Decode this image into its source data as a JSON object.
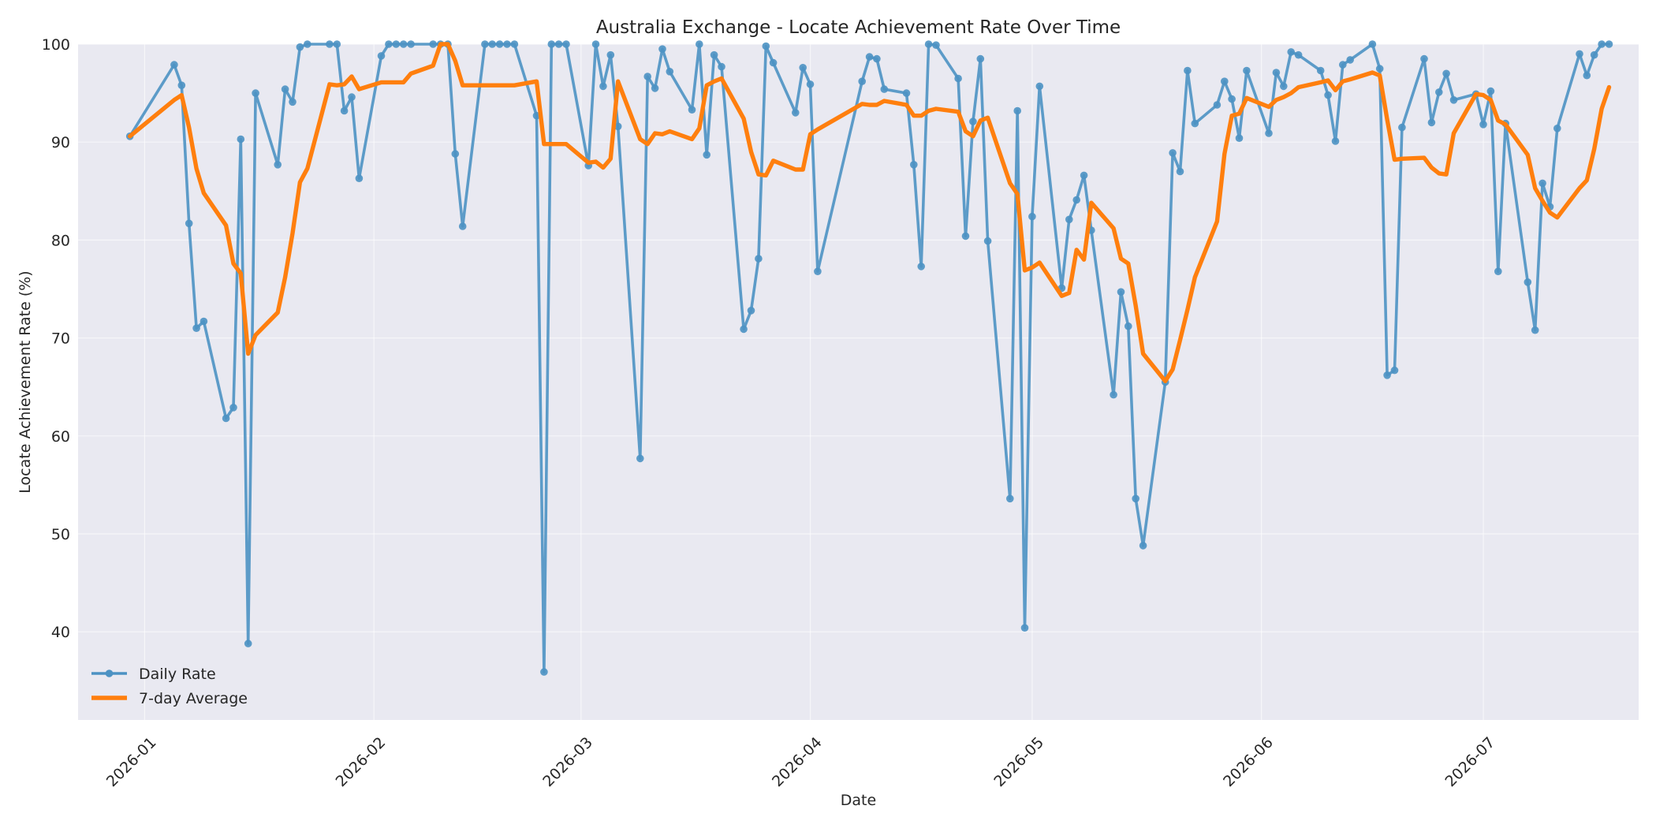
{
  "chart_data": {
    "type": "line",
    "title": "Australia Exchange - Locate Achievement Rate Over Time",
    "xlabel": "Date",
    "ylabel": "Locate Achievement Rate (%)",
    "xlim": [
      "2025-12-23",
      "2026-07-22"
    ],
    "ylim": [
      31,
      100
    ],
    "y_ticks": [
      40,
      50,
      60,
      70,
      80,
      90,
      100
    ],
    "x_ticks": [
      "2026-01",
      "2026-02",
      "2026-03",
      "2026-04",
      "2026-05",
      "2026-06",
      "2026-07"
    ],
    "grid": true,
    "legend_position": "lower-left",
    "series": [
      {
        "name": "Daily Rate",
        "color": "#4c92c3",
        "marker": "circle",
        "points": [
          [
            "2025-12-30",
            90.6
          ],
          [
            "2026-01-05",
            97.9
          ],
          [
            "2026-01-06",
            95.8
          ],
          [
            "2026-01-07",
            81.7
          ],
          [
            "2026-01-08",
            71.0
          ],
          [
            "2026-01-09",
            71.7
          ],
          [
            "2026-01-12",
            61.8
          ],
          [
            "2026-01-13",
            62.9
          ],
          [
            "2026-01-14",
            90.3
          ],
          [
            "2026-01-15",
            38.8
          ],
          [
            "2026-01-16",
            95.0
          ],
          [
            "2026-01-19",
            87.7
          ],
          [
            "2026-01-20",
            95.4
          ],
          [
            "2026-01-21",
            94.1
          ],
          [
            "2026-01-22",
            99.7
          ],
          [
            "2026-01-23",
            100.0
          ],
          [
            "2026-01-26",
            100.0
          ],
          [
            "2026-01-27",
            100.0
          ],
          [
            "2026-01-28",
            93.2
          ],
          [
            "2026-01-29",
            94.6
          ],
          [
            "2026-01-30",
            86.3
          ],
          [
            "2026-02-02",
            98.8
          ],
          [
            "2026-02-03",
            100.0
          ],
          [
            "2026-02-04",
            100.0
          ],
          [
            "2026-02-05",
            100.0
          ],
          [
            "2026-02-06",
            100.0
          ],
          [
            "2026-02-09",
            100.0
          ],
          [
            "2026-02-10",
            100.0
          ],
          [
            "2026-02-11",
            100.0
          ],
          [
            "2026-02-12",
            88.8
          ],
          [
            "2026-02-13",
            81.4
          ],
          [
            "2026-02-16",
            100.0
          ],
          [
            "2026-02-17",
            100.0
          ],
          [
            "2026-02-18",
            100.0
          ],
          [
            "2026-02-19",
            100.0
          ],
          [
            "2026-02-20",
            100.0
          ],
          [
            "2026-02-23",
            92.7
          ],
          [
            "2026-02-24",
            35.9
          ],
          [
            "2026-02-25",
            100.0
          ],
          [
            "2026-02-26",
            100.0
          ],
          [
            "2026-02-27",
            100.0
          ],
          [
            "2026-03-02",
            87.6
          ],
          [
            "2026-03-03",
            100.0
          ],
          [
            "2026-03-04",
            95.7
          ],
          [
            "2026-03-05",
            98.9
          ],
          [
            "2026-03-06",
            91.6
          ],
          [
            "2026-03-09",
            57.7
          ],
          [
            "2026-03-10",
            96.7
          ],
          [
            "2026-03-11",
            95.5
          ],
          [
            "2026-03-12",
            99.5
          ],
          [
            "2026-03-13",
            97.2
          ],
          [
            "2026-03-16",
            93.3
          ],
          [
            "2026-03-17",
            100.0
          ],
          [
            "2026-03-18",
            88.7
          ],
          [
            "2026-03-19",
            98.9
          ],
          [
            "2026-03-20",
            97.7
          ],
          [
            "2026-03-23",
            70.9
          ],
          [
            "2026-03-24",
            72.8
          ],
          [
            "2026-03-25",
            78.1
          ],
          [
            "2026-03-26",
            99.8
          ],
          [
            "2026-03-27",
            98.1
          ],
          [
            "2026-03-30",
            93.0
          ],
          [
            "2026-03-31",
            97.6
          ],
          [
            "2026-04-01",
            95.9
          ],
          [
            "2026-04-02",
            76.8
          ],
          [
            "2026-04-08",
            96.2
          ],
          [
            "2026-04-09",
            98.7
          ],
          [
            "2026-04-10",
            98.5
          ],
          [
            "2026-04-11",
            95.4
          ],
          [
            "2026-04-14",
            95.0
          ],
          [
            "2026-04-15",
            87.7
          ],
          [
            "2026-04-16",
            77.3
          ],
          [
            "2026-04-17",
            100.0
          ],
          [
            "2026-04-18",
            99.9
          ],
          [
            "2026-04-21",
            96.5
          ],
          [
            "2026-04-22",
            80.4
          ],
          [
            "2026-04-23",
            92.1
          ],
          [
            "2026-04-24",
            98.5
          ],
          [
            "2026-04-25",
            79.9
          ],
          [
            "2026-04-28",
            53.6
          ],
          [
            "2026-04-29",
            93.2
          ],
          [
            "2026-04-30",
            40.4
          ],
          [
            "2026-05-01",
            82.4
          ],
          [
            "2026-05-02",
            95.7
          ],
          [
            "2026-05-05",
            75.1
          ],
          [
            "2026-05-06",
            82.1
          ],
          [
            "2026-05-07",
            84.1
          ],
          [
            "2026-05-08",
            86.6
          ],
          [
            "2026-05-09",
            81.0
          ],
          [
            "2026-05-12",
            64.2
          ],
          [
            "2026-05-13",
            74.7
          ],
          [
            "2026-05-14",
            71.2
          ],
          [
            "2026-05-15",
            53.6
          ],
          [
            "2026-05-16",
            48.8
          ],
          [
            "2026-05-19",
            65.5
          ],
          [
            "2026-05-20",
            88.9
          ],
          [
            "2026-05-21",
            87.0
          ],
          [
            "2026-05-22",
            97.3
          ],
          [
            "2026-05-23",
            91.9
          ],
          [
            "2026-05-26",
            93.8
          ],
          [
            "2026-05-27",
            96.2
          ],
          [
            "2026-05-28",
            94.4
          ],
          [
            "2026-05-29",
            90.4
          ],
          [
            "2026-05-30",
            97.3
          ],
          [
            "2026-06-02",
            90.9
          ],
          [
            "2026-06-03",
            97.1
          ],
          [
            "2026-06-04",
            95.7
          ],
          [
            "2026-06-05",
            99.2
          ],
          [
            "2026-06-06",
            98.9
          ],
          [
            "2026-06-09",
            97.3
          ],
          [
            "2026-06-10",
            94.8
          ],
          [
            "2026-06-11",
            90.1
          ],
          [
            "2026-06-12",
            97.9
          ],
          [
            "2026-06-13",
            98.4
          ],
          [
            "2026-06-16",
            100.0
          ],
          [
            "2026-06-17",
            97.5
          ],
          [
            "2026-06-18",
            66.2
          ],
          [
            "2026-06-19",
            66.7
          ],
          [
            "2026-06-20",
            91.5
          ],
          [
            "2026-06-23",
            98.5
          ],
          [
            "2026-06-24",
            92.0
          ],
          [
            "2026-06-25",
            95.1
          ],
          [
            "2026-06-26",
            97.0
          ],
          [
            "2026-06-27",
            94.3
          ],
          [
            "2026-06-30",
            94.9
          ],
          [
            "2026-07-01",
            91.8
          ],
          [
            "2026-07-02",
            95.2
          ],
          [
            "2026-07-03",
            76.8
          ],
          [
            "2026-07-04",
            91.9
          ],
          [
            "2026-07-07",
            75.7
          ],
          [
            "2026-07-08",
            70.8
          ],
          [
            "2026-07-09",
            85.8
          ],
          [
            "2026-07-10",
            83.4
          ],
          [
            "2026-07-11",
            91.4
          ],
          [
            "2026-07-14",
            99.0
          ],
          [
            "2026-07-15",
            96.8
          ],
          [
            "2026-07-16",
            98.9
          ],
          [
            "2026-07-17",
            100.0
          ],
          [
            "2026-07-18",
            100.0
          ]
        ]
      },
      {
        "name": "7-day Average",
        "color": "#ff7f0e",
        "marker": "none",
        "points": [
          [
            "2025-12-30",
            90.6
          ],
          [
            "2026-01-05",
            94.3
          ],
          [
            "2026-01-06",
            94.8
          ],
          [
            "2026-01-07",
            91.5
          ],
          [
            "2026-01-08",
            87.3
          ],
          [
            "2026-01-09",
            84.8
          ],
          [
            "2026-01-12",
            81.5
          ],
          [
            "2026-01-13",
            77.6
          ],
          [
            "2026-01-14",
            76.6
          ],
          [
            "2026-01-15",
            68.4
          ],
          [
            "2026-01-16",
            70.3
          ],
          [
            "2026-01-19",
            72.6
          ],
          [
            "2026-01-20",
            76.2
          ],
          [
            "2026-01-21",
            80.7
          ],
          [
            "2026-01-22",
            85.9
          ],
          [
            "2026-01-23",
            87.3
          ],
          [
            "2026-01-26",
            95.9
          ],
          [
            "2026-01-27",
            95.8
          ],
          [
            "2026-01-28",
            95.9
          ],
          [
            "2026-01-29",
            96.7
          ],
          [
            "2026-01-30",
            95.4
          ],
          [
            "2026-02-02",
            96.1
          ],
          [
            "2026-02-03",
            96.1
          ],
          [
            "2026-02-04",
            96.1
          ],
          [
            "2026-02-05",
            96.1
          ],
          [
            "2026-02-06",
            97.0
          ],
          [
            "2026-02-09",
            97.8
          ],
          [
            "2026-02-10",
            100.0
          ],
          [
            "2026-02-11",
            100.0
          ],
          [
            "2026-02-12",
            98.3
          ],
          [
            "2026-02-13",
            95.8
          ],
          [
            "2026-02-16",
            95.8
          ],
          [
            "2026-02-17",
            95.8
          ],
          [
            "2026-02-18",
            95.8
          ],
          [
            "2026-02-19",
            95.8
          ],
          [
            "2026-02-20",
            95.8
          ],
          [
            "2026-02-23",
            96.2
          ],
          [
            "2026-02-24",
            89.8
          ],
          [
            "2026-02-25",
            89.8
          ],
          [
            "2026-02-26",
            89.8
          ],
          [
            "2026-02-27",
            89.8
          ],
          [
            "2026-03-02",
            87.9
          ],
          [
            "2026-03-03",
            88.0
          ],
          [
            "2026-03-04",
            87.4
          ],
          [
            "2026-03-05",
            88.3
          ],
          [
            "2026-03-06",
            96.2
          ],
          [
            "2026-03-09",
            90.3
          ],
          [
            "2026-03-10",
            89.8
          ],
          [
            "2026-03-11",
            90.9
          ],
          [
            "2026-03-12",
            90.8
          ],
          [
            "2026-03-13",
            91.1
          ],
          [
            "2026-03-16",
            90.3
          ],
          [
            "2026-03-17",
            91.4
          ],
          [
            "2026-03-18",
            95.8
          ],
          [
            "2026-03-19",
            96.2
          ],
          [
            "2026-03-20",
            96.5
          ],
          [
            "2026-03-23",
            92.4
          ],
          [
            "2026-03-24",
            89.0
          ],
          [
            "2026-03-25",
            86.7
          ],
          [
            "2026-03-26",
            86.6
          ],
          [
            "2026-03-27",
            88.1
          ],
          [
            "2026-03-30",
            87.2
          ],
          [
            "2026-03-31",
            87.2
          ],
          [
            "2026-04-01",
            90.8
          ],
          [
            "2026-04-02",
            91.3
          ],
          [
            "2026-04-08",
            93.9
          ],
          [
            "2026-04-09",
            93.8
          ],
          [
            "2026-04-10",
            93.8
          ],
          [
            "2026-04-11",
            94.2
          ],
          [
            "2026-04-14",
            93.8
          ],
          [
            "2026-04-15",
            92.7
          ],
          [
            "2026-04-16",
            92.7
          ],
          [
            "2026-04-17",
            93.2
          ],
          [
            "2026-04-18",
            93.4
          ],
          [
            "2026-04-21",
            93.1
          ],
          [
            "2026-04-22",
            91.1
          ],
          [
            "2026-04-23",
            90.6
          ],
          [
            "2026-04-24",
            92.2
          ],
          [
            "2026-04-25",
            92.5
          ],
          [
            "2026-04-28",
            85.8
          ],
          [
            "2026-04-29",
            84.7
          ],
          [
            "2026-04-30",
            76.9
          ],
          [
            "2026-05-01",
            77.2
          ],
          [
            "2026-05-02",
            77.7
          ],
          [
            "2026-05-05",
            74.3
          ],
          [
            "2026-05-06",
            74.6
          ],
          [
            "2026-05-07",
            79.0
          ],
          [
            "2026-05-08",
            78.0
          ],
          [
            "2026-05-09",
            83.8
          ],
          [
            "2026-05-12",
            81.2
          ],
          [
            "2026-05-13",
            78.1
          ],
          [
            "2026-05-14",
            77.6
          ],
          [
            "2026-05-15",
            73.3
          ],
          [
            "2026-05-16",
            68.4
          ],
          [
            "2026-05-19",
            65.6
          ],
          [
            "2026-05-20",
            66.8
          ],
          [
            "2026-05-21",
            69.8
          ],
          [
            "2026-05-22",
            72.9
          ],
          [
            "2026-05-23",
            76.2
          ],
          [
            "2026-05-26",
            81.9
          ],
          [
            "2026-05-27",
            88.8
          ],
          [
            "2026-05-28",
            92.7
          ],
          [
            "2026-05-29",
            92.9
          ],
          [
            "2026-05-30",
            94.5
          ],
          [
            "2026-06-02",
            93.6
          ],
          [
            "2026-06-03",
            94.3
          ],
          [
            "2026-06-04",
            94.6
          ],
          [
            "2026-06-05",
            95.0
          ],
          [
            "2026-06-06",
            95.6
          ],
          [
            "2026-06-09",
            96.1
          ],
          [
            "2026-06-10",
            96.3
          ],
          [
            "2026-06-11",
            95.3
          ],
          [
            "2026-06-12",
            96.2
          ],
          [
            "2026-06-13",
            96.4
          ],
          [
            "2026-06-16",
            97.1
          ],
          [
            "2026-06-17",
            96.8
          ],
          [
            "2026-06-18",
            92.3
          ],
          [
            "2026-06-19",
            88.2
          ],
          [
            "2026-06-20",
            88.3
          ],
          [
            "2026-06-23",
            88.4
          ],
          [
            "2026-06-24",
            87.4
          ],
          [
            "2026-06-25",
            86.8
          ],
          [
            "2026-06-26",
            86.7
          ],
          [
            "2026-06-27",
            90.9
          ],
          [
            "2026-06-30",
            94.9
          ],
          [
            "2026-07-01",
            94.8
          ],
          [
            "2026-07-02",
            94.3
          ],
          [
            "2026-07-03",
            92.2
          ],
          [
            "2026-07-04",
            91.8
          ],
          [
            "2026-07-07",
            88.7
          ],
          [
            "2026-07-08",
            85.3
          ],
          [
            "2026-07-09",
            84.0
          ],
          [
            "2026-07-10",
            82.8
          ],
          [
            "2026-07-11",
            82.3
          ],
          [
            "2026-07-14",
            85.3
          ],
          [
            "2026-07-15",
            86.1
          ],
          [
            "2026-07-16",
            89.3
          ],
          [
            "2026-07-17",
            93.4
          ],
          [
            "2026-07-18",
            95.6
          ]
        ]
      }
    ]
  }
}
